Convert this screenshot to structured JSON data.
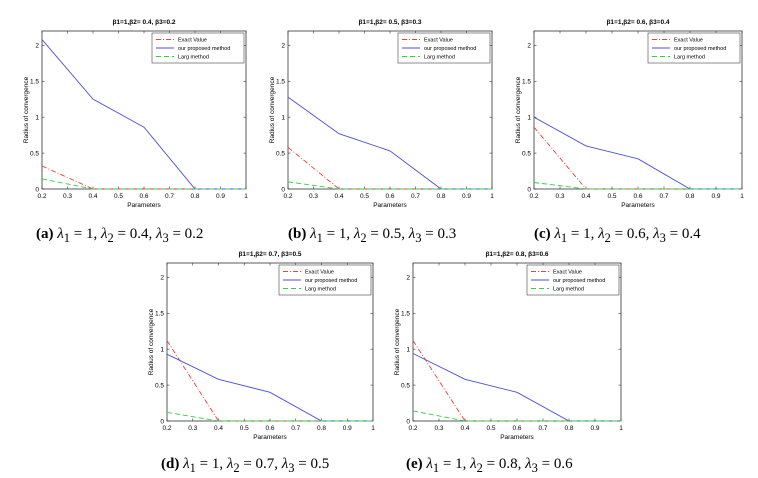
{
  "legend_labels": [
    "Exact Value",
    "our proposed method",
    "Larg method"
  ],
  "colors": {
    "exact": "#e8413a",
    "proposed": "#4b4fd9",
    "larg": "#33cc44"
  },
  "chart_data": [
    {
      "type": "line",
      "id": "a",
      "title": "β1=1,β2= 0.4, β3=0.2",
      "xlabel": "Parameters",
      "ylabel": "Radius of convergence",
      "xlim": [
        0.2,
        1
      ],
      "ylim": [
        0,
        2.2
      ],
      "xticks": [
        "0.2",
        "0.3",
        "0.4",
        "0.5",
        "0.6",
        "0.7",
        "0.8",
        "0.9",
        "1"
      ],
      "yticks": [
        "0",
        "0.5",
        "1",
        "1.5",
        "2"
      ],
      "x": [
        0.2,
        0.4,
        0.6,
        0.8,
        1.0
      ],
      "series": [
        {
          "name": "Exact Value",
          "values": [
            0.32,
            0,
            0,
            0,
            0
          ]
        },
        {
          "name": "our proposed method",
          "values": [
            2.08,
            1.25,
            0.86,
            0,
            0
          ]
        },
        {
          "name": "Larg method",
          "values": [
            0.14,
            0,
            0,
            0,
            0
          ]
        }
      ],
      "caption": {
        "label": "(a)",
        "l1": "1",
        "l2": "0.4",
        "l3": "0.2"
      }
    },
    {
      "type": "line",
      "id": "b",
      "title": "β1=1,β2= 0.5, β3=0.3",
      "xlabel": "Parameters",
      "ylabel": "Radius of convergence",
      "xlim": [
        0.2,
        1
      ],
      "ylim": [
        0,
        2.2
      ],
      "xticks": [
        "0.2",
        "0.3",
        "0.4",
        "0.5",
        "0.6",
        "0.7",
        "0.8",
        "0.9",
        "1"
      ],
      "yticks": [
        "0",
        "0.5",
        "1",
        "1.5",
        "2"
      ],
      "x": [
        0.2,
        0.4,
        0.6,
        0.8,
        1.0
      ],
      "series": [
        {
          "name": "Exact Value",
          "values": [
            0.58,
            0,
            0,
            0,
            0
          ]
        },
        {
          "name": "our proposed method",
          "values": [
            1.28,
            0.77,
            0.53,
            0,
            0
          ]
        },
        {
          "name": "Larg method",
          "values": [
            0.1,
            0,
            0,
            0,
            0
          ]
        }
      ],
      "caption": {
        "label": "(b)",
        "l1": "1",
        "l2": "0.5",
        "l3": "0.3"
      }
    },
    {
      "type": "line",
      "id": "c",
      "title": "β1=1,β2= 0.6, β3=0.4",
      "xlabel": "Parameters",
      "ylabel": "Radius of convergence",
      "xlim": [
        0.2,
        1
      ],
      "ylim": [
        0,
        2.2
      ],
      "xticks": [
        "0.2",
        "0.3",
        "0.4",
        "0.5",
        "0.6",
        "0.7",
        "0.8",
        "0.9",
        "1"
      ],
      "yticks": [
        "0",
        "0.5",
        "1",
        "1.5",
        "2"
      ],
      "x": [
        0.2,
        0.4,
        0.6,
        0.8,
        1.0
      ],
      "series": [
        {
          "name": "Exact Value",
          "values": [
            0.86,
            0,
            0,
            0,
            0
          ]
        },
        {
          "name": "our proposed method",
          "values": [
            1.0,
            0.6,
            0.42,
            0,
            0
          ]
        },
        {
          "name": "Larg method",
          "values": [
            0.09,
            0,
            0,
            0,
            0
          ]
        }
      ],
      "caption": {
        "label": "(c)",
        "l1": "1",
        "l2": "0.6",
        "l3": "0.4"
      }
    },
    {
      "type": "line",
      "id": "d",
      "title": "β1=1,β2= 0.7, β3=0.5",
      "xlabel": "Parameters",
      "ylabel": "Radius of convergence",
      "xlim": [
        0.2,
        1
      ],
      "ylim": [
        0,
        2.2
      ],
      "xticks": [
        "0.2",
        "0.3",
        "0.4",
        "0.5",
        "0.6",
        "0.7",
        "0.8",
        "0.9",
        "1"
      ],
      "yticks": [
        "0",
        "0.5",
        "1",
        "1.5",
        "2"
      ],
      "x": [
        0.2,
        0.4,
        0.6,
        0.8,
        1.0
      ],
      "series": [
        {
          "name": "Exact Value",
          "values": [
            1.12,
            0,
            0,
            0,
            0
          ]
        },
        {
          "name": "our proposed method",
          "values": [
            0.93,
            0.58,
            0.4,
            0,
            0
          ]
        },
        {
          "name": "Larg method",
          "values": [
            0.12,
            0,
            0,
            0,
            0
          ]
        }
      ],
      "caption": {
        "label": "(d)",
        "l1": "1",
        "l2": "0.7",
        "l3": "0.5"
      }
    },
    {
      "type": "line",
      "id": "e",
      "title": "β1=1,β2= 0.8, β3=0.6",
      "xlabel": "Parameters",
      "ylabel": "Radius of convergence",
      "xlim": [
        0.2,
        1
      ],
      "ylim": [
        0,
        2.2
      ],
      "xticks": [
        "0.2",
        "0.3",
        "0.4",
        "0.5",
        "0.6",
        "0.7",
        "0.8",
        "0.9",
        "1"
      ],
      "yticks": [
        "0",
        "0.5",
        "1",
        "1.5",
        "2"
      ],
      "x": [
        0.2,
        0.4,
        0.6,
        0.8,
        1.0
      ],
      "series": [
        {
          "name": "Exact Value",
          "values": [
            1.12,
            0,
            0,
            0,
            0
          ]
        },
        {
          "name": "our proposed method",
          "values": [
            0.94,
            0.58,
            0.4,
            0,
            0
          ]
        },
        {
          "name": "Larg method",
          "values": [
            0.14,
            0,
            0,
            0,
            0
          ]
        }
      ],
      "caption": {
        "label": "(e)",
        "l1": "1",
        "l2": "0.8",
        "l3": "0.6"
      }
    }
  ]
}
